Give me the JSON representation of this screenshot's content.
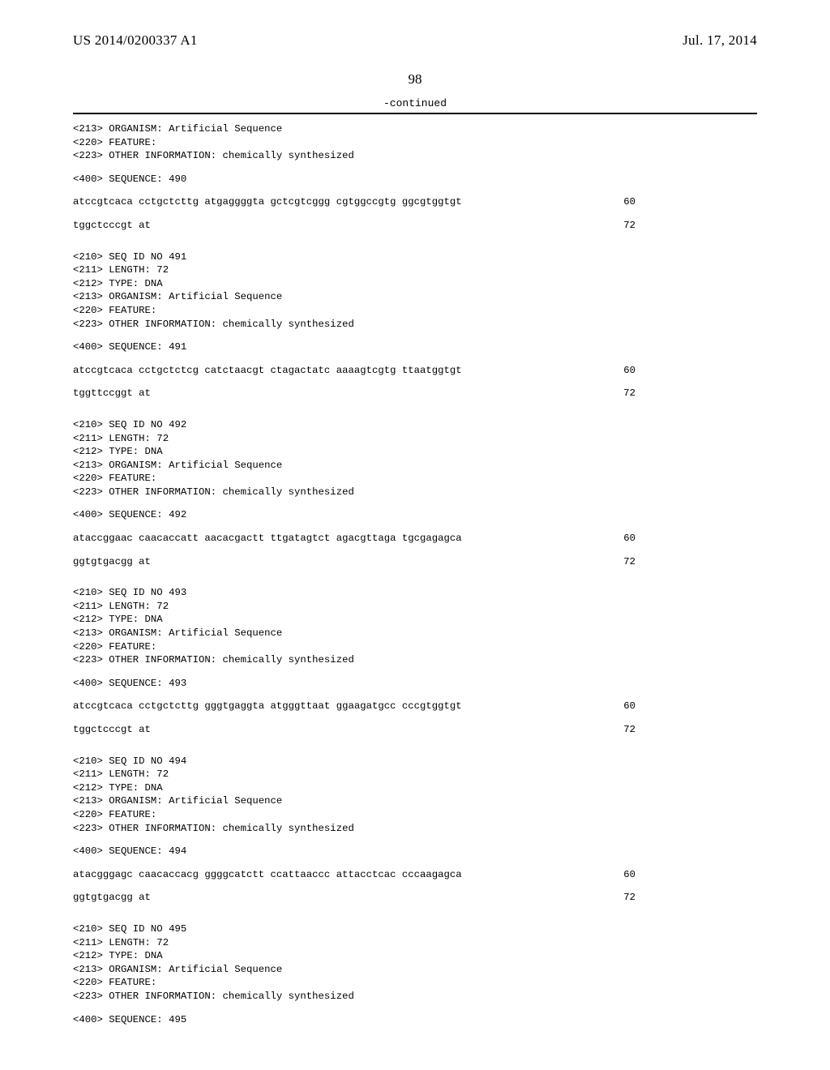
{
  "header": {
    "pubnum": "US 2014/0200337 A1",
    "date": "Jul. 17, 2014"
  },
  "pagenum": "98",
  "continued_label": "-continued",
  "entries": [
    {
      "prelines": [
        "<213> ORGANISM: Artificial Sequence",
        "<220> FEATURE:",
        "<223> OTHER INFORMATION: chemically synthesized"
      ],
      "seqlabel": "<400> SEQUENCE: 490",
      "rows": [
        {
          "seq": "atccgtcaca cctgctcttg atgaggggta gctcgtcggg cgtggccgtg ggcgtggtgt",
          "num": "60"
        },
        {
          "seq": "tggctcccgt at",
          "num": "72"
        }
      ]
    },
    {
      "prelines": [
        "<210> SEQ ID NO 491",
        "<211> LENGTH: 72",
        "<212> TYPE: DNA",
        "<213> ORGANISM: Artificial Sequence",
        "<220> FEATURE:",
        "<223> OTHER INFORMATION: chemically synthesized"
      ],
      "seqlabel": "<400> SEQUENCE: 491",
      "rows": [
        {
          "seq": "atccgtcaca cctgctctcg catctaacgt ctagactatc aaaagtcgtg ttaatggtgt",
          "num": "60"
        },
        {
          "seq": "tggttccggt at",
          "num": "72"
        }
      ]
    },
    {
      "prelines": [
        "<210> SEQ ID NO 492",
        "<211> LENGTH: 72",
        "<212> TYPE: DNA",
        "<213> ORGANISM: Artificial Sequence",
        "<220> FEATURE:",
        "<223> OTHER INFORMATION: chemically synthesized"
      ],
      "seqlabel": "<400> SEQUENCE: 492",
      "rows": [
        {
          "seq": "ataccggaac caacaccatt aacacgactt ttgatagtct agacgttaga tgcgagagca",
          "num": "60"
        },
        {
          "seq": "ggtgtgacgg at",
          "num": "72"
        }
      ]
    },
    {
      "prelines": [
        "<210> SEQ ID NO 493",
        "<211> LENGTH: 72",
        "<212> TYPE: DNA",
        "<213> ORGANISM: Artificial Sequence",
        "<220> FEATURE:",
        "<223> OTHER INFORMATION: chemically synthesized"
      ],
      "seqlabel": "<400> SEQUENCE: 493",
      "rows": [
        {
          "seq": "atccgtcaca cctgctcttg gggtgaggta atgggttaat ggaagatgcc cccgtggtgt",
          "num": "60"
        },
        {
          "seq": "tggctcccgt at",
          "num": "72"
        }
      ]
    },
    {
      "prelines": [
        "<210> SEQ ID NO 494",
        "<211> LENGTH: 72",
        "<212> TYPE: DNA",
        "<213> ORGANISM: Artificial Sequence",
        "<220> FEATURE:",
        "<223> OTHER INFORMATION: chemically synthesized"
      ],
      "seqlabel": "<400> SEQUENCE: 494",
      "rows": [
        {
          "seq": "atacgggagc caacaccacg ggggcatctt ccattaaccc attacctcac cccaagagca",
          "num": "60"
        },
        {
          "seq": "ggtgtgacgg at",
          "num": "72"
        }
      ]
    },
    {
      "prelines": [
        "<210> SEQ ID NO 495",
        "<211> LENGTH: 72",
        "<212> TYPE: DNA",
        "<213> ORGANISM: Artificial Sequence",
        "<220> FEATURE:",
        "<223> OTHER INFORMATION: chemically synthesized"
      ],
      "seqlabel": "<400> SEQUENCE: 495",
      "rows": []
    }
  ]
}
